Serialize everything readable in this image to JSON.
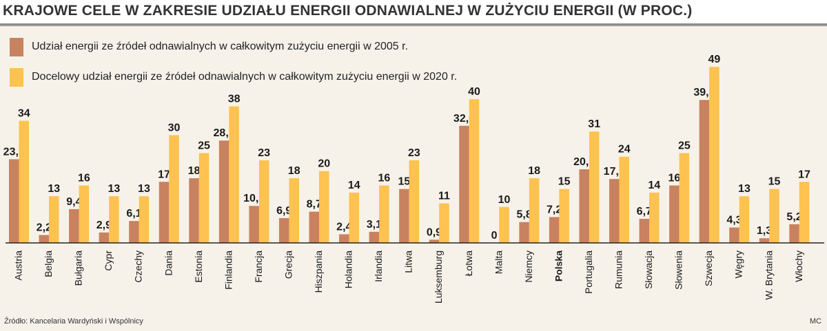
{
  "chart_data": {
    "type": "bar",
    "title": "KRAJOWE CELE W ZAKRESIE UDZIAŁU ENERGII ODNAWIALNEJ W ZUŻYCIU ENERGII (W PROC.)",
    "categories": [
      "Austria",
      "Belgia",
      "Bułgaria",
      "Cypr",
      "Czechy",
      "Dania",
      "Estonia",
      "Finlandia",
      "Francja",
      "Grecja",
      "Hiszpania",
      "Holandia",
      "Irlandia",
      "Litwa",
      "Luksemburg",
      "Łotwa",
      "Malta",
      "Niemcy",
      "Polska",
      "Portugalia",
      "Rumunia",
      "Słowacja",
      "Słowenia",
      "Szwecja",
      "Węgry",
      "W. Brytania",
      "Włochy"
    ],
    "highlight_category": "Polska",
    "series": [
      {
        "name": "Udział energii ze źródeł odnawialnych w całkowitym zużyciu energii w 2005 r.",
        "color": "#c8825f",
        "values": [
          23.3,
          2.2,
          9.4,
          2.9,
          6.1,
          17,
          18,
          28.5,
          10.3,
          6.9,
          8.7,
          2.4,
          3.1,
          15,
          0.9,
          32.6,
          0,
          5.8,
          7.2,
          20.5,
          17.8,
          6.7,
          16,
          39.8,
          4.3,
          1.3,
          5.2
        ],
        "labels": [
          "23,3",
          "2,2",
          "9,4",
          "2,9",
          "6,1",
          "17",
          "18",
          "28,5",
          "10,3",
          "6,9",
          "8,7",
          "2,4",
          "3,1",
          "15",
          "0,9",
          "32,6",
          "0",
          "5,8",
          "7,2",
          "20,5",
          "17,8",
          "6,7",
          "16",
          "39,8",
          "4,3",
          "1,3",
          "5,2"
        ]
      },
      {
        "name": "Docelowy udział energii ze źródeł odnawialnych w całkowitym zużyciu energii w 2020 r.",
        "color": "#fdc24f",
        "values": [
          34,
          13,
          16,
          13,
          13,
          30,
          25,
          38,
          23,
          18,
          20,
          14,
          16,
          23,
          11,
          40,
          10,
          18,
          15,
          31,
          24,
          14,
          25,
          49,
          13,
          15,
          17
        ],
        "labels": [
          "34",
          "13",
          "16",
          "13",
          "13",
          "30",
          "25",
          "38",
          "23",
          "18",
          "20",
          "14",
          "16",
          "23",
          "11",
          "40",
          "10",
          "18",
          "15",
          "31",
          "24",
          "14",
          "25",
          "49",
          "13",
          "15",
          "17"
        ]
      }
    ],
    "ylim": [
      0,
      50
    ],
    "grid": false,
    "legend_position": "top-left"
  },
  "source": "Źródło: Kancelaria Wardyński i Wspólnicy",
  "credit": "MC",
  "colors": {
    "background": "#f6f2e9",
    "title_rule": "#8c8c8c",
    "text": "#222222"
  }
}
